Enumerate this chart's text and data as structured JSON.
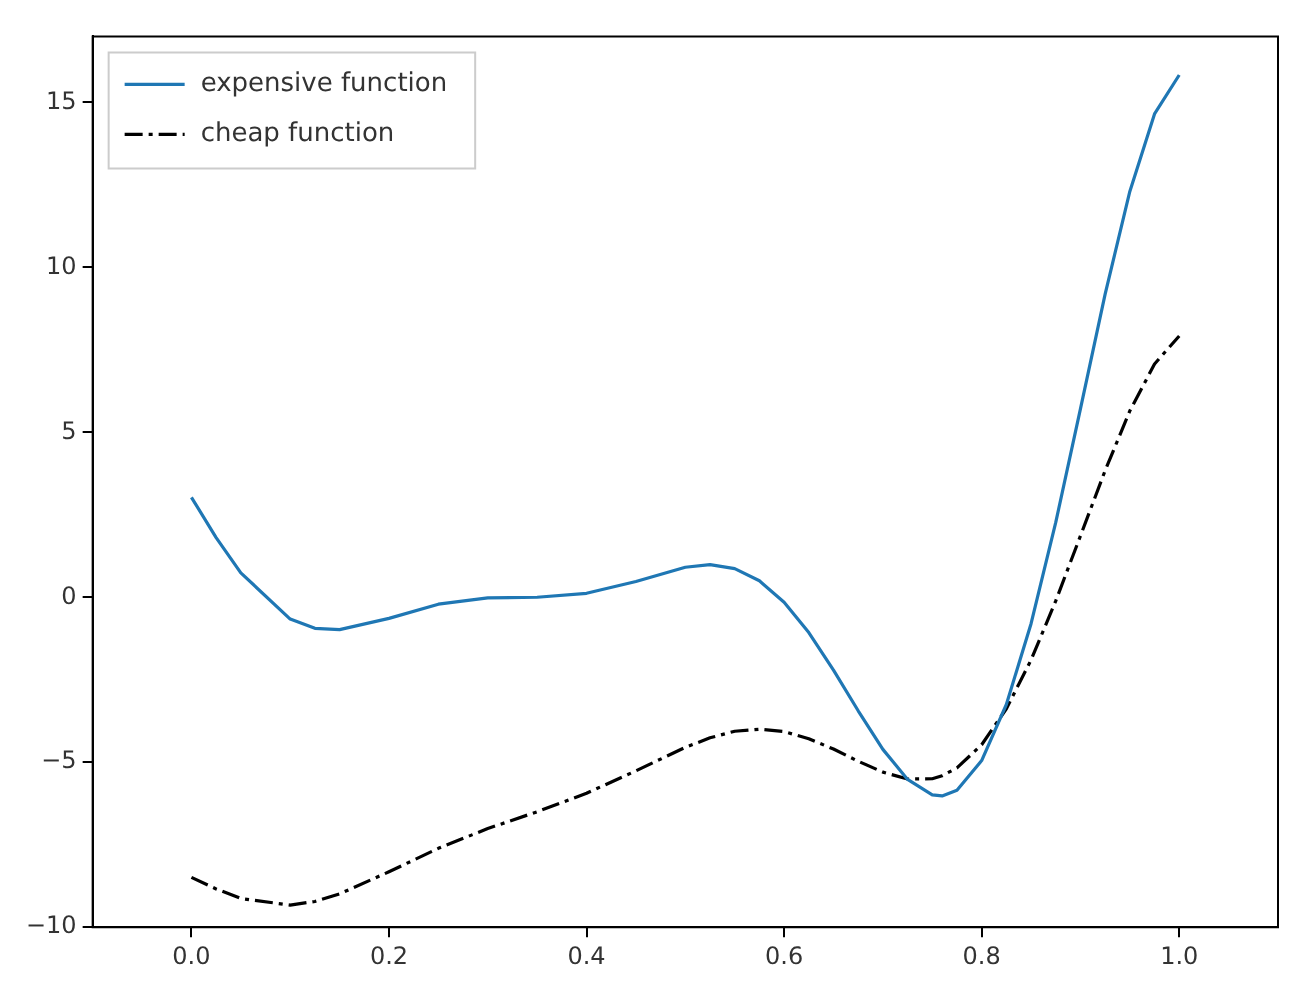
{
  "chart_data": {
    "type": "line",
    "x": [
      0,
      0.025,
      0.05,
      0.1,
      0.125,
      0.15,
      0.2,
      0.25,
      0.3,
      0.35,
      0.4,
      0.45,
      0.5,
      0.525,
      0.55,
      0.575,
      0.6,
      0.625,
      0.65,
      0.675,
      0.7,
      0.725,
      0.75,
      0.76,
      0.775,
      0.8,
      0.825,
      0.85,
      0.875,
      0.9,
      0.925,
      0.95,
      0.975,
      1.0
    ],
    "series": [
      {
        "name": "expensive function",
        "color": "#1f77b4",
        "line_style": "solid",
        "values": [
          3.03,
          1.81,
          0.74,
          -0.66,
          -0.94,
          -0.98,
          -0.64,
          -0.21,
          -0.02,
          0.0,
          0.12,
          0.48,
          0.91,
          0.99,
          0.87,
          0.5,
          -0.15,
          -1.07,
          -2.21,
          -3.44,
          -4.61,
          -5.52,
          -5.99,
          -6.02,
          -5.85,
          -4.95,
          -3.25,
          -0.8,
          2.27,
          5.71,
          9.19,
          12.3,
          14.65,
          15.83
        ]
      },
      {
        "name": "cheap function",
        "color": "#000000",
        "line_style": "dashed",
        "values": [
          -8.49,
          -8.84,
          -9.13,
          -9.33,
          -9.22,
          -8.99,
          -8.32,
          -7.61,
          -7.01,
          -6.5,
          -5.94,
          -5.26,
          -4.55,
          -4.26,
          -4.06,
          -4.0,
          -4.07,
          -4.29,
          -4.6,
          -4.97,
          -5.3,
          -5.51,
          -5.5,
          -5.41,
          -5.17,
          -4.47,
          -3.38,
          -1.9,
          -0.11,
          1.86,
          3.84,
          5.65,
          7.07,
          7.92
        ]
      }
    ],
    "xlim": [
      -0.1,
      1.1
    ],
    "xticks": [
      {
        "value": 0,
        "label": "0.0"
      },
      {
        "value": 0.2,
        "label": "0.2"
      },
      {
        "value": 0.4,
        "label": "0.4"
      },
      {
        "value": 0.6,
        "label": "0.6"
      },
      {
        "value": 0.8,
        "label": "0.8"
      },
      {
        "value": 1,
        "label": "1.0"
      }
    ],
    "ylim": [
      -10,
      17
    ],
    "yticks": [
      {
        "value": -10,
        "label": "−10"
      },
      {
        "value": -5,
        "label": "−5"
      },
      0,
      5,
      10,
      15
    ],
    "grid": false,
    "legend": "top left",
    "marker": "none"
  }
}
